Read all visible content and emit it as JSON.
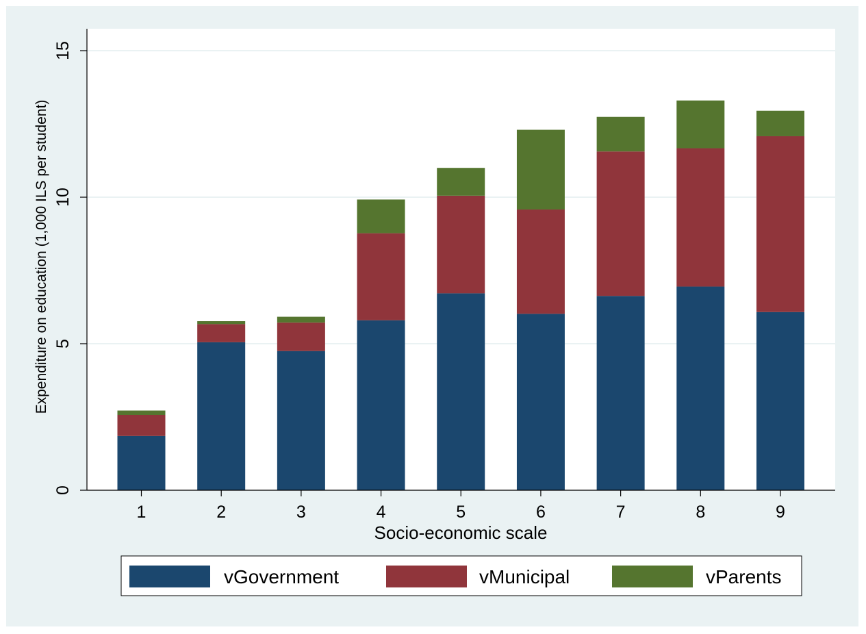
{
  "chart_data": {
    "type": "bar",
    "stacked": true,
    "xlabel": "Socio-economic scale",
    "ylabel": "Expenditure on education (1,000 ILS per student)",
    "ylim": [
      0,
      16
    ],
    "yticks": [
      0,
      5,
      10,
      15
    ],
    "grid": true,
    "legend_position": "bottom",
    "categories": [
      "1",
      "2",
      "3",
      "4",
      "5",
      "6",
      "7",
      "8",
      "9"
    ],
    "series": [
      {
        "name": "vGovernment",
        "color": "#1b476e",
        "values": [
          1.85,
          5.05,
          4.75,
          5.8,
          6.72,
          6.02,
          6.63,
          6.95,
          6.08
        ]
      },
      {
        "name": "vMunicipal",
        "color": "#90353b",
        "values": [
          0.72,
          0.62,
          0.97,
          2.97,
          3.33,
          3.56,
          4.93,
          4.72,
          6.0
        ]
      },
      {
        "name": "vParents",
        "color": "#55752f",
        "values": [
          0.15,
          0.1,
          0.2,
          1.15,
          0.95,
          2.72,
          1.18,
          1.63,
          0.87
        ]
      }
    ]
  }
}
